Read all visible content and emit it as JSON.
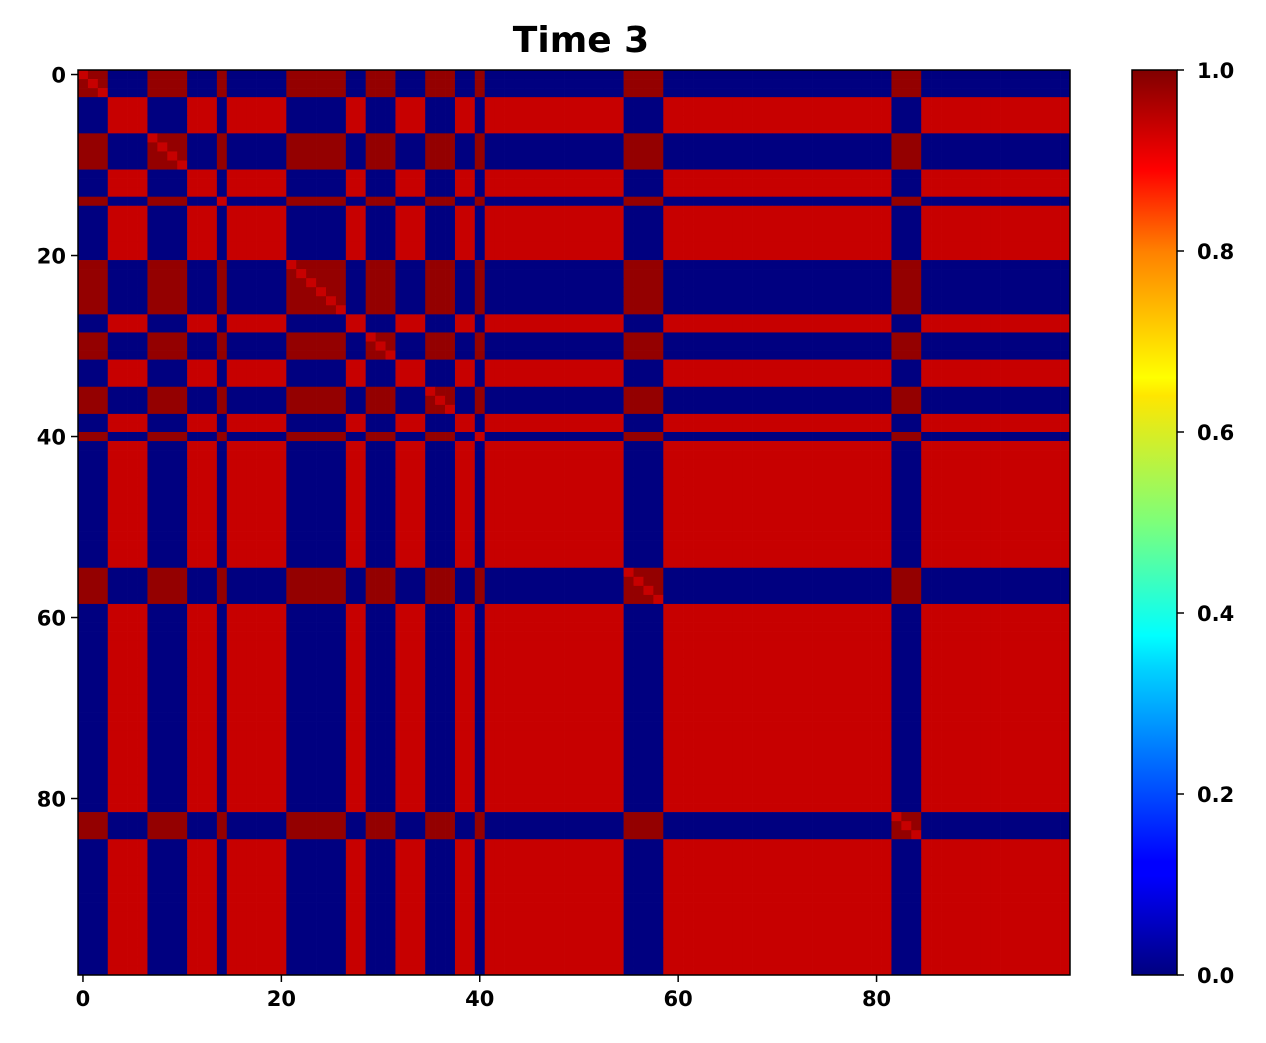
{
  "chart_data": {
    "type": "heatmap",
    "title": "Time 3",
    "xlabel": "",
    "ylabel": "",
    "matrix_size": 100,
    "xlim": [
      -0.5,
      99.5
    ],
    "ylim": [
      99.5,
      -0.5
    ],
    "x_ticks": [
      0,
      20,
      40,
      60,
      80
    ],
    "y_ticks": [
      0,
      20,
      40,
      60,
      80
    ],
    "colormap": "jet",
    "colorbar": {
      "range": [
        0.0,
        1.0
      ],
      "ticks": [
        "0.0",
        "0.2",
        "0.4",
        "0.6",
        "0.8",
        "1.0"
      ]
    },
    "structure": "two-community similarity matrix: cell value ≈ 1 when row and column belong to the same group, ≈ 0 otherwise",
    "groupA_indices": [
      0,
      1,
      2,
      7,
      8,
      9,
      10,
      14,
      21,
      22,
      23,
      24,
      25,
      26,
      29,
      30,
      31,
      35,
      36,
      37,
      40,
      55,
      56,
      57,
      58,
      82,
      83,
      84
    ],
    "level_same_group_A": 0.98,
    "level_same_group_B": 0.93,
    "level_cross_group": 0.0,
    "diagonal": 0.93
  }
}
